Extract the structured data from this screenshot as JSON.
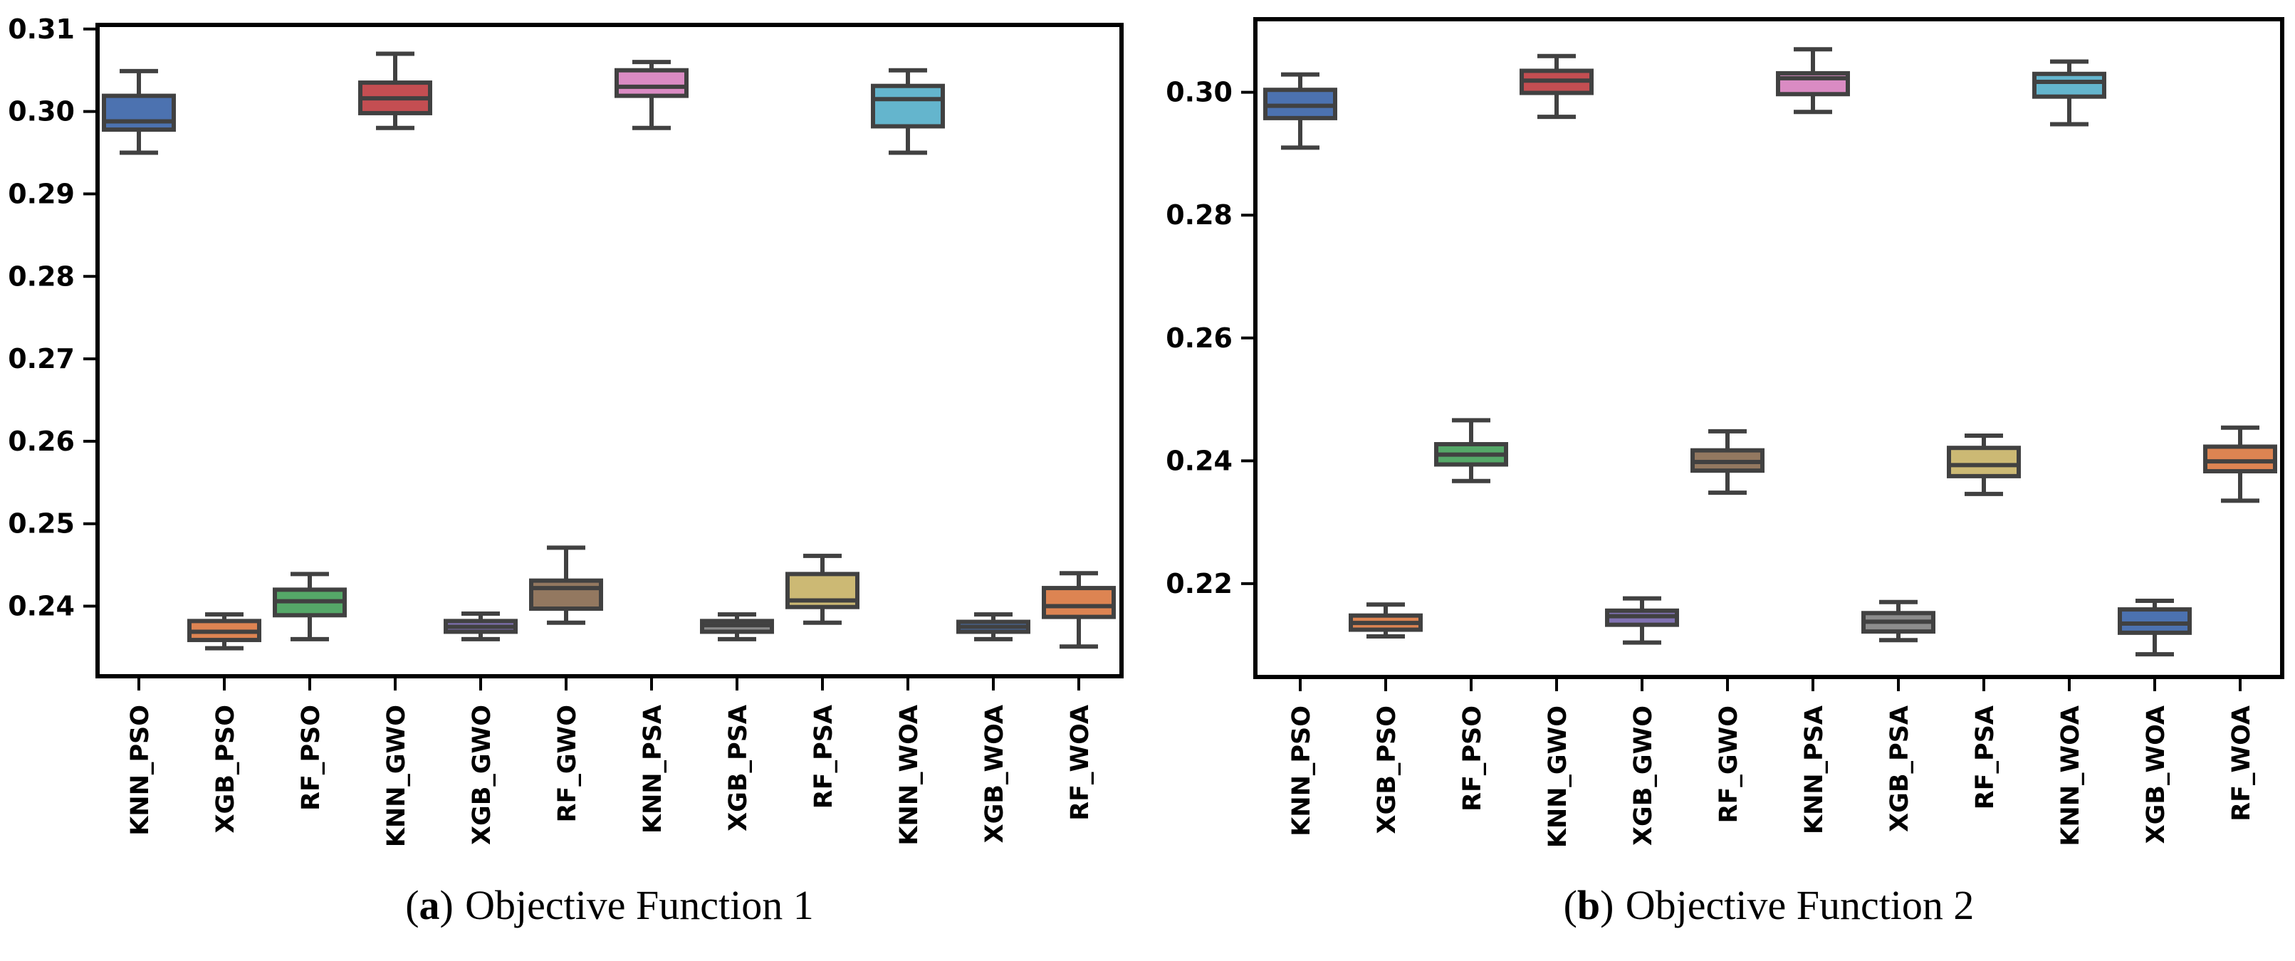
{
  "figure": {
    "captions": [
      {
        "open": "(",
        "label": "a",
        "close": ")",
        "text": "Objective Function 1"
      },
      {
        "open": "(",
        "label": "b",
        "close": ")",
        "text": "Objective Function 2"
      }
    ]
  },
  "style": {
    "box_edge_color": "#414141",
    "axis_color": "#000000",
    "background": "#ffffff",
    "palette_note": "seaborn deep palette cycling"
  },
  "chart_data": [
    {
      "type": "boxplot",
      "panel": "a",
      "title": "(a) Objective Function 1",
      "xlabel": "",
      "ylabel": "",
      "grid": false,
      "legend": "none",
      "ylim": [
        0.2315,
        0.3105
      ],
      "yticks": [
        "0.24",
        "0.25",
        "0.26",
        "0.27",
        "0.28",
        "0.29",
        "0.30",
        "0.31"
      ],
      "categories": [
        "KNN_PSO",
        "XGB_PSO",
        "RF_PSO",
        "KNN_GWO",
        "XGB_GWO",
        "RF_GWO",
        "KNN_PSA",
        "XGB_PSA",
        "RF_PSA",
        "KNN_WOA",
        "XGB_WOA",
        "RF_WOA"
      ],
      "boxes": [
        {
          "label": "KNN_PSO",
          "color": "#4C72B0",
          "whislo": 0.295,
          "q1": 0.2978,
          "med": 0.2988,
          "q3": 0.3019,
          "whishi": 0.3049
        },
        {
          "label": "XGB_PSO",
          "color": "#DD8452",
          "whislo": 0.2349,
          "q1": 0.2359,
          "med": 0.2369,
          "q3": 0.2382,
          "whishi": 0.239
        },
        {
          "label": "RF_PSO",
          "color": "#55A868",
          "whislo": 0.236,
          "q1": 0.2389,
          "med": 0.2406,
          "q3": 0.242,
          "whishi": 0.2439
        },
        {
          "label": "KNN_GWO",
          "color": "#C44E52",
          "whislo": 0.298,
          "q1": 0.2998,
          "med": 0.3016,
          "q3": 0.3035,
          "whishi": 0.307
        },
        {
          "label": "XGB_GWO",
          "color": "#8172B3",
          "whislo": 0.236,
          "q1": 0.2369,
          "med": 0.2375,
          "q3": 0.2382,
          "whishi": 0.2391
        },
        {
          "label": "RF_GWO",
          "color": "#937860",
          "whislo": 0.238,
          "q1": 0.2397,
          "med": 0.2422,
          "q3": 0.2431,
          "whishi": 0.2471
        },
        {
          "label": "KNN_PSA",
          "color": "#DA8BC3",
          "whislo": 0.298,
          "q1": 0.3019,
          "med": 0.303,
          "q3": 0.305,
          "whishi": 0.306
        },
        {
          "label": "XGB_PSA",
          "color": "#8C8C8C",
          "whislo": 0.236,
          "q1": 0.2369,
          "med": 0.2377,
          "q3": 0.2382,
          "whishi": 0.239
        },
        {
          "label": "RF_PSA",
          "color": "#CCB974",
          "whislo": 0.238,
          "q1": 0.2399,
          "med": 0.2407,
          "q3": 0.2439,
          "whishi": 0.2461
        },
        {
          "label": "KNN_WOA",
          "color": "#64B5CD",
          "whislo": 0.295,
          "q1": 0.2982,
          "med": 0.3015,
          "q3": 0.3031,
          "whishi": 0.305
        },
        {
          "label": "XGB_WOA",
          "color": "#4C72B0",
          "whislo": 0.236,
          "q1": 0.2369,
          "med": 0.2375,
          "q3": 0.2381,
          "whishi": 0.239
        },
        {
          "label": "RF_WOA",
          "color": "#DD8452",
          "whislo": 0.2351,
          "q1": 0.2387,
          "med": 0.24,
          "q3": 0.2422,
          "whishi": 0.244
        }
      ]
    },
    {
      "type": "boxplot",
      "panel": "b",
      "title": "(b) Objective Function 2",
      "xlabel": "",
      "ylabel": "",
      "grid": false,
      "legend": "none",
      "ylim": [
        0.2048,
        0.3119
      ],
      "yticks": [
        "0.22",
        "0.24",
        "0.26",
        "0.28",
        "0.30"
      ],
      "categories": [
        "KNN_PSO",
        "XGB_PSO",
        "RF_PSO",
        "KNN_GWO",
        "XGB_GWO",
        "RF_GWO",
        "KNN_PSA",
        "XGB_PSA",
        "RF_PSA",
        "KNN_WOA",
        "XGB_WOA",
        "RF_WOA"
      ],
      "boxes": [
        {
          "label": "KNN_PSO",
          "color": "#4C72B0",
          "whislo": 0.291,
          "q1": 0.2958,
          "med": 0.2978,
          "q3": 0.3004,
          "whishi": 0.3029
        },
        {
          "label": "XGB_PSO",
          "color": "#DD8452",
          "whislo": 0.2114,
          "q1": 0.2125,
          "med": 0.2136,
          "q3": 0.2148,
          "whishi": 0.2166
        },
        {
          "label": "RF_PSO",
          "color": "#55A868",
          "whislo": 0.2367,
          "q1": 0.2394,
          "med": 0.241,
          "q3": 0.2427,
          "whishi": 0.2466
        },
        {
          "label": "KNN_GWO",
          "color": "#C44E52",
          "whislo": 0.296,
          "q1": 0.2999,
          "med": 0.3019,
          "q3": 0.3035,
          "whishi": 0.3059
        },
        {
          "label": "XGB_GWO",
          "color": "#8172B3",
          "whislo": 0.2104,
          "q1": 0.2133,
          "med": 0.2147,
          "q3": 0.2156,
          "whishi": 0.2176
        },
        {
          "label": "RF_GWO",
          "color": "#937860",
          "whislo": 0.2348,
          "q1": 0.2384,
          "med": 0.2398,
          "q3": 0.2417,
          "whishi": 0.2448
        },
        {
          "label": "KNN_PSA",
          "color": "#DA8BC3",
          "whislo": 0.2968,
          "q1": 0.2997,
          "med": 0.3023,
          "q3": 0.3031,
          "whishi": 0.307
        },
        {
          "label": "XGB_PSA",
          "color": "#8C8C8C",
          "whislo": 0.2108,
          "q1": 0.2122,
          "med": 0.2138,
          "q3": 0.2152,
          "whishi": 0.217
        },
        {
          "label": "RF_PSA",
          "color": "#CCB974",
          "whislo": 0.2346,
          "q1": 0.2375,
          "med": 0.2393,
          "q3": 0.2421,
          "whishi": 0.2441
        },
        {
          "label": "KNN_WOA",
          "color": "#64B5CD",
          "whislo": 0.2948,
          "q1": 0.2993,
          "med": 0.3017,
          "q3": 0.303,
          "whishi": 0.305
        },
        {
          "label": "XGB_WOA",
          "color": "#4C72B0",
          "whislo": 0.2085,
          "q1": 0.212,
          "med": 0.2135,
          "q3": 0.2158,
          "whishi": 0.2172
        },
        {
          "label": "RF_WOA",
          "color": "#DD8452",
          "whislo": 0.2335,
          "q1": 0.2383,
          "med": 0.2399,
          "q3": 0.2423,
          "whishi": 0.2454
        }
      ]
    }
  ]
}
